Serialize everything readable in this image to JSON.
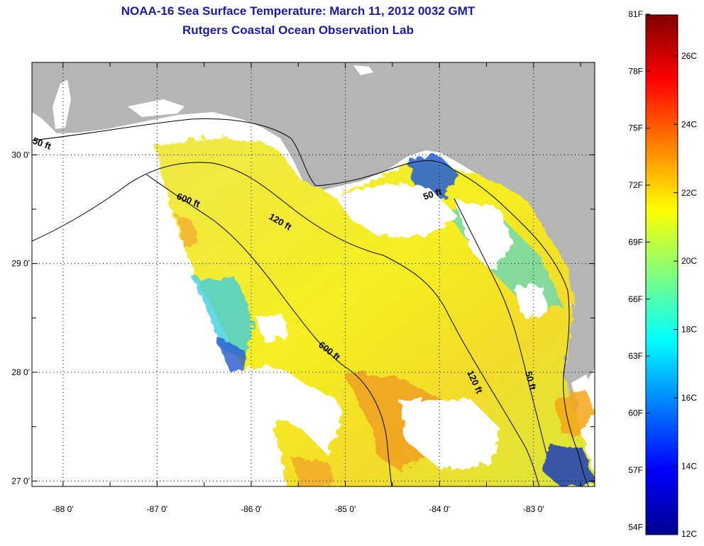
{
  "header": {
    "title": "NOAA-16 Sea Surface Temperature:  March 11, 2012 0032 GMT",
    "subtitle": "Rutgers Coastal Ocean Observation Lab"
  },
  "map": {
    "lat_ticks": [
      "30 0'",
      "29 0'",
      "28 0'",
      "27 0'"
    ],
    "lon_ticks": [
      "-88 0'",
      "-87 0'",
      "-86 0'",
      "-85 0'",
      "-84 0'",
      "-83 0'"
    ],
    "lat_range": [
      26.95,
      30.85
    ],
    "lon_range": [
      -88.33,
      -82.35
    ],
    "contours": [
      "50 ft",
      "600 ft",
      "120 ft",
      "50 ft",
      "600 ft",
      "120 ft",
      "50 ft"
    ],
    "colors": {
      "land": "#b5b5b5",
      "ocean_no_data": "#ffffff",
      "cloud": "#ffffff"
    }
  },
  "colorbar": {
    "f_labels": [
      "81F",
      "78F",
      "75F",
      "72F",
      "69F",
      "66F",
      "63F",
      "60F",
      "57F",
      "54F"
    ],
    "c_labels": [
      "26C",
      "24C",
      "22C",
      "20C",
      "18C",
      "16C",
      "14C",
      "12C"
    ],
    "range_c": [
      12,
      27.2
    ],
    "colormap": "jet"
  }
}
